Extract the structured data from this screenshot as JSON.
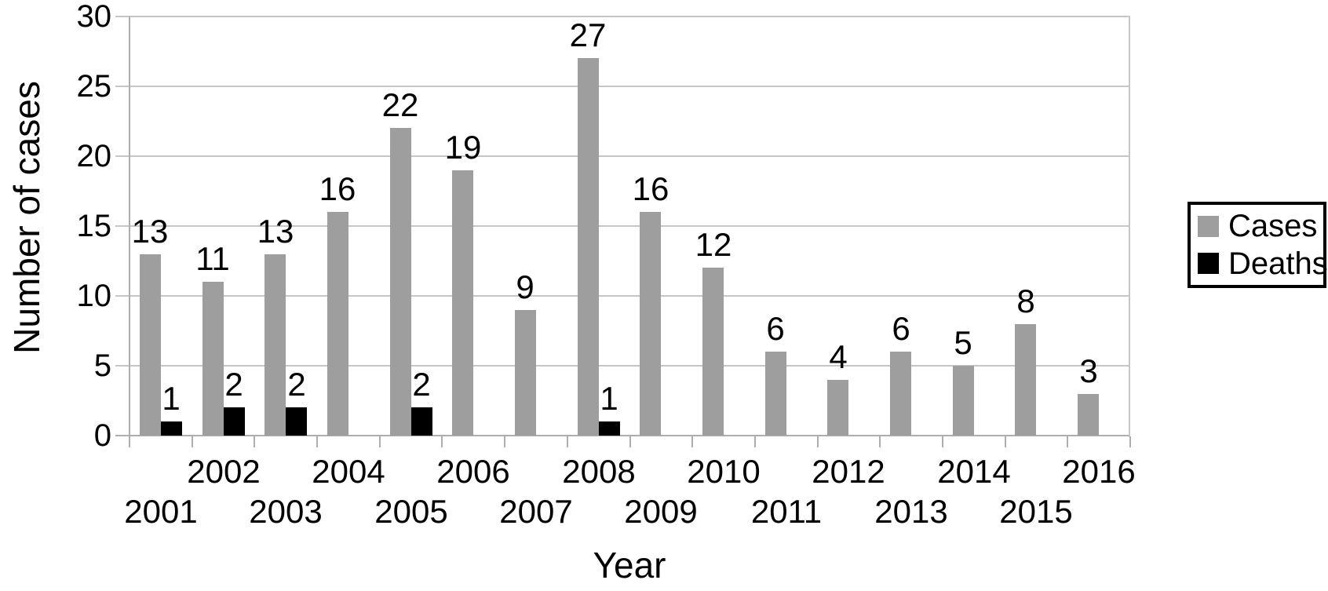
{
  "chart_data": {
    "type": "bar",
    "title": "",
    "xlabel": "Year",
    "ylabel": "Number of cases",
    "categories": [
      "2001",
      "2002",
      "2003",
      "2004",
      "2005",
      "2006",
      "2007",
      "2008",
      "2009",
      "2010",
      "2011",
      "2012",
      "2013",
      "2014",
      "2015",
      "2016"
    ],
    "series": [
      {
        "name": "Cases",
        "color": "#9e9e9e",
        "values": [
          13,
          11,
          13,
          16,
          22,
          19,
          9,
          27,
          16,
          12,
          6,
          4,
          6,
          5,
          8,
          3
        ]
      },
      {
        "name": "Deaths",
        "color": "#000000",
        "values": [
          1,
          2,
          2,
          0,
          2,
          0,
          0,
          1,
          0,
          0,
          0,
          0,
          0,
          0,
          0,
          0
        ]
      }
    ],
    "ylim": [
      0,
      30
    ],
    "yticks": [
      0,
      5,
      10,
      15,
      20,
      25,
      30
    ],
    "grid": true,
    "bar_value_labels": true,
    "x_labels_staggered": true,
    "legend_position": "right"
  },
  "legend": {
    "items": [
      {
        "label": "Cases",
        "color": "#9e9e9e"
      },
      {
        "label": "Deaths",
        "color": "#000000"
      }
    ]
  },
  "colors": {
    "bar_gray": "#9e9e9e",
    "bar_black": "#000000",
    "gridline": "#c6c6c6",
    "axis": "#aeaeae",
    "text": "#000000",
    "background": "#ffffff"
  }
}
